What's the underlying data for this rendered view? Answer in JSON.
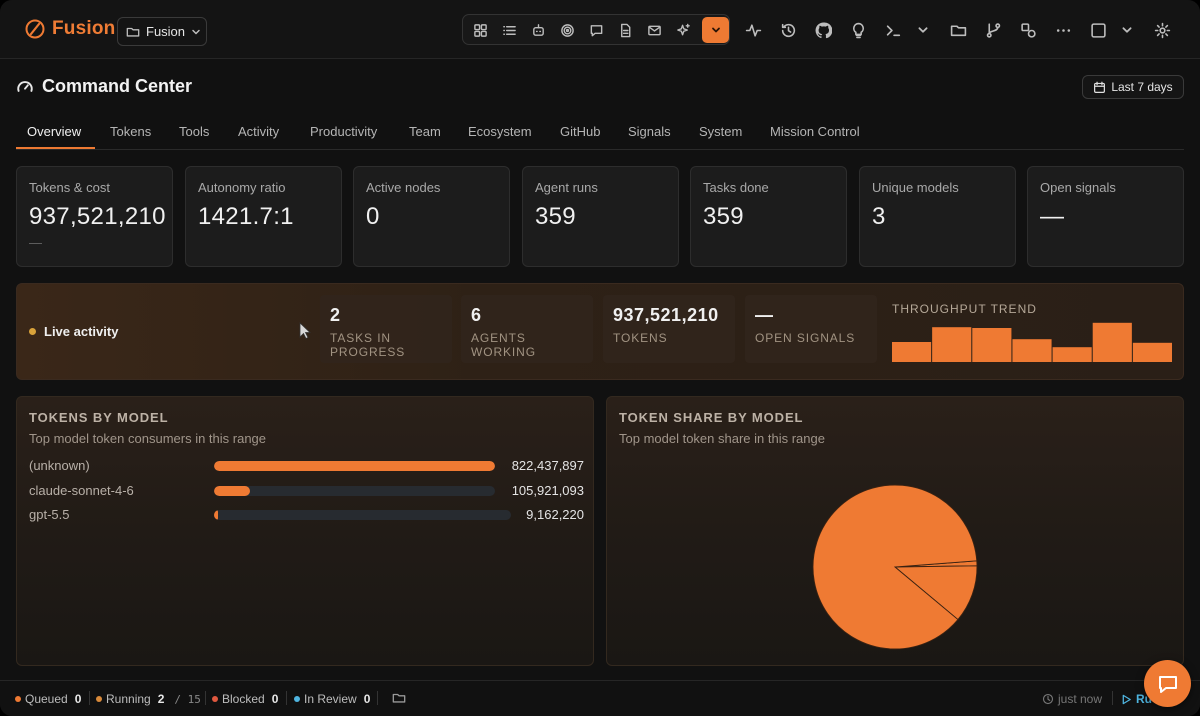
{
  "brand": {
    "name": "Fusion",
    "accent": "#ef7a33"
  },
  "project": {
    "selected": "Fusion"
  },
  "toolbar": {
    "group_icons": [
      "dashboard-icon",
      "list-icon",
      "bot-icon",
      "target-icon",
      "chat-icon",
      "document-icon",
      "mail-icon",
      "sparkle-icon",
      "chevron-down-icon"
    ],
    "icons": [
      "activity-icon",
      "history-icon",
      "github-icon",
      "lightbulb-icon",
      "terminal-icon",
      "chevron-down-icon",
      "folder-icon",
      "git-branch-icon",
      "shapes-icon",
      "more-icon",
      "square-icon",
      "chevron-down-icon",
      "settings-icon"
    ]
  },
  "header": {
    "title": "Command Center",
    "range_label": "Last 7 days"
  },
  "tabs": [
    "Overview",
    "Tokens",
    "Tools",
    "Activity",
    "Productivity",
    "Team",
    "Ecosystem",
    "GitHub",
    "Signals",
    "System",
    "Mission Control"
  ],
  "active_tab": "Overview",
  "stats": [
    {
      "label": "Tokens & cost",
      "value": "937,521,210",
      "sub": "—"
    },
    {
      "label": "Autonomy ratio",
      "value": "1421.7:1"
    },
    {
      "label": "Active nodes",
      "value": "0"
    },
    {
      "label": "Agent runs",
      "value": "359"
    },
    {
      "label": "Tasks done",
      "value": "359"
    },
    {
      "label": "Unique models",
      "value": "3"
    },
    {
      "label": "Open signals",
      "value": "—"
    }
  ],
  "live": {
    "label": "Live activity",
    "stats": [
      {
        "value": "2",
        "label": "Tasks in progress"
      },
      {
        "value": "6",
        "label": "Agents working"
      },
      {
        "value": "937,521,210",
        "label": "Tokens"
      },
      {
        "value": "—",
        "label": "Open signals"
      }
    ],
    "trend_title": "Throughput trend",
    "trend_values": [
      0.5,
      0.87,
      0.85,
      0.57,
      0.37,
      0.98,
      0.48
    ]
  },
  "tokens_by_model": {
    "title": "TOKENS BY MODEL",
    "subtitle": "Top model token consumers in this range",
    "rows": [
      {
        "model": "(unknown)",
        "value": "822,437,897",
        "fraction": 1.0
      },
      {
        "model": "claude-sonnet-4-6",
        "value": "105,921,093",
        "fraction": 0.129
      },
      {
        "model": "gpt-5.5",
        "value": "9,162,220",
        "fraction": 0.011
      }
    ]
  },
  "token_share": {
    "title": "TOKEN SHARE BY MODEL",
    "subtitle": "Top model token share in this range",
    "chart_data": {
      "type": "pie",
      "categories": [
        "(unknown)",
        "claude-sonnet-4-6",
        "gpt-5.5"
      ],
      "values": [
        822437897,
        105921093,
        9162220
      ]
    }
  },
  "statusbar": {
    "queued_label": "Queued",
    "queued": "0",
    "running_label": "Running",
    "running": "2",
    "running_total": "/ 15",
    "blocked_label": "Blocked",
    "blocked": "0",
    "review_label": "In Review",
    "review": "0",
    "updated": "just now",
    "run_label": "Ru"
  },
  "colors": {
    "queued": "#ef7a33",
    "running": "#d98a3a",
    "blocked": "#e0583f",
    "review": "#4fb5e0"
  }
}
